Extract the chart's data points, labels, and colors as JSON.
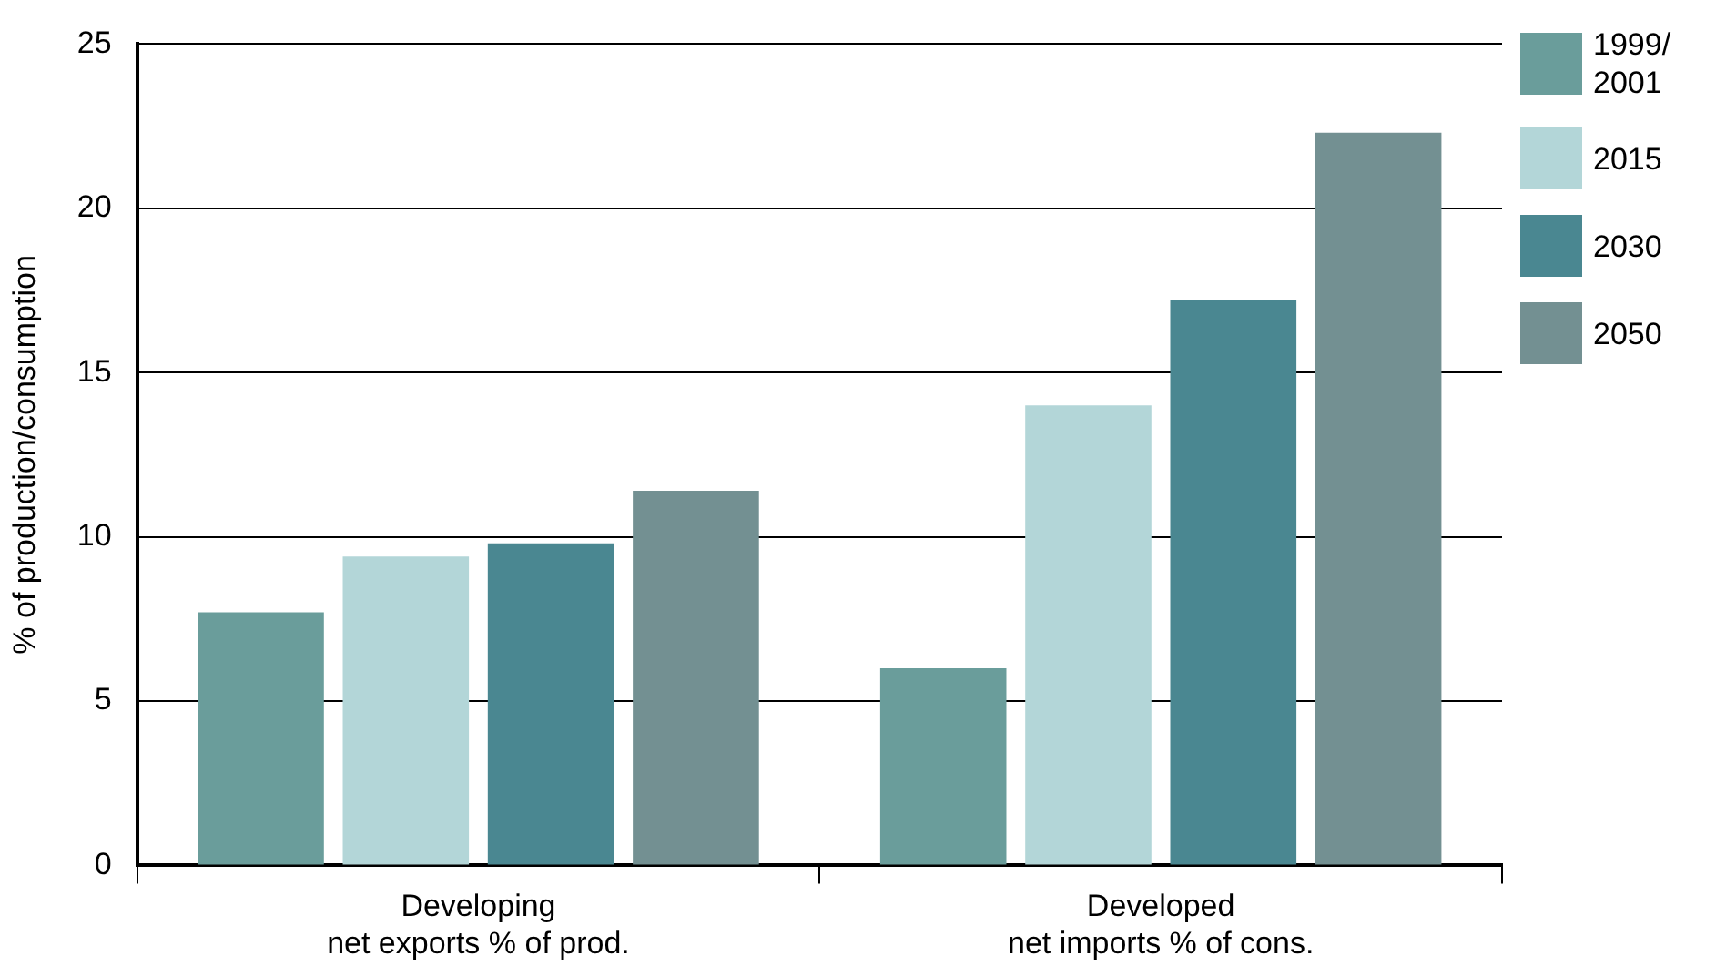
{
  "chart_data": {
    "type": "bar",
    "ylabel": "% of production/consumption",
    "categories": [
      "Developing\nnet exports % of prod.",
      "Developed\nnet imports % of cons."
    ],
    "series": [
      {
        "name": "1999/2001",
        "color": "#6a9d9b",
        "values": [
          7.7,
          6.0
        ]
      },
      {
        "name": "2015",
        "color": "#b3d6d8",
        "values": [
          9.4,
          14.0
        ]
      },
      {
        "name": "2030",
        "color": "#4a8791",
        "values": [
          9.8,
          17.2
        ]
      },
      {
        "name": "2050",
        "color": "#739092",
        "values": [
          11.4,
          22.3
        ]
      }
    ],
    "ylim": [
      0,
      25
    ],
    "yticks": [
      0,
      5,
      10,
      15,
      20,
      25
    ],
    "grid": "y",
    "legend": "right"
  }
}
